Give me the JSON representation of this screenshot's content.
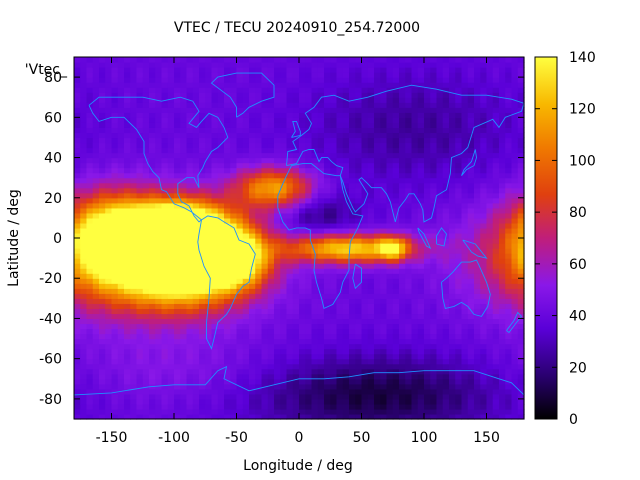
{
  "chart_data": {
    "type": "heatmap",
    "title": "VTEC / TECU 20240910_254.72000",
    "xlabel": "Longitude / deg",
    "ylabel": "Latitude / deg",
    "series_label": "'Vtec_",
    "xlim": [
      -180,
      180
    ],
    "ylim": [
      -90,
      90
    ],
    "xticks": [
      -150,
      -100,
      -50,
      0,
      50,
      100,
      150
    ],
    "yticks": [
      -80,
      -60,
      -40,
      -20,
      0,
      20,
      40,
      60,
      80
    ],
    "colorbar": {
      "range": [
        0,
        140
      ],
      "ticks": [
        0,
        20,
        40,
        60,
        80,
        100,
        120,
        140
      ],
      "palette": [
        "#000000",
        "#2a0070",
        "#5a00d8",
        "#8a18e8",
        "#c01e7a",
        "#e0400f",
        "#f07a00",
        "#f8b800",
        "#ffff40"
      ]
    },
    "grid": false,
    "overlay": "coastlines",
    "overlay_color": "#1e90ff",
    "features": [
      {
        "lon": -125,
        "lat": -10,
        "tec": 95,
        "sx": 55,
        "sy": 18
      },
      {
        "lon": -90,
        "lat": -10,
        "tec": 110,
        "sx": 30,
        "sy": 14
      },
      {
        "lon": -95,
        "lat": 5,
        "tec": 100,
        "sx": 25,
        "sy": 9
      },
      {
        "lon": -150,
        "lat": 2,
        "tec": 75,
        "sx": 25,
        "sy": 14
      },
      {
        "lon": -50,
        "lat": -10,
        "tec": 80,
        "sx": 18,
        "sy": 10
      },
      {
        "lon": -20,
        "lat": 25,
        "tec": 75,
        "sx": 22,
        "sy": 7
      },
      {
        "lon": 40,
        "lat": -5,
        "tec": 90,
        "sx": 35,
        "sy": 5
      },
      {
        "lon": 75,
        "lat": -5,
        "tec": 60,
        "sx": 8,
        "sy": 4
      },
      {
        "lon": 15,
        "lat": 12,
        "tec": -20,
        "sx": 22,
        "sy": 8
      },
      {
        "lon": 60,
        "lat": -78,
        "tec": -30,
        "sx": 70,
        "sy": 14
      },
      {
        "lon": 90,
        "lat": 55,
        "tec": -15,
        "sx": 60,
        "sy": 20
      },
      {
        "lon": -100,
        "lat": -65,
        "tec": 10,
        "sx": 60,
        "sy": 12
      }
    ],
    "base_tec": 40
  }
}
